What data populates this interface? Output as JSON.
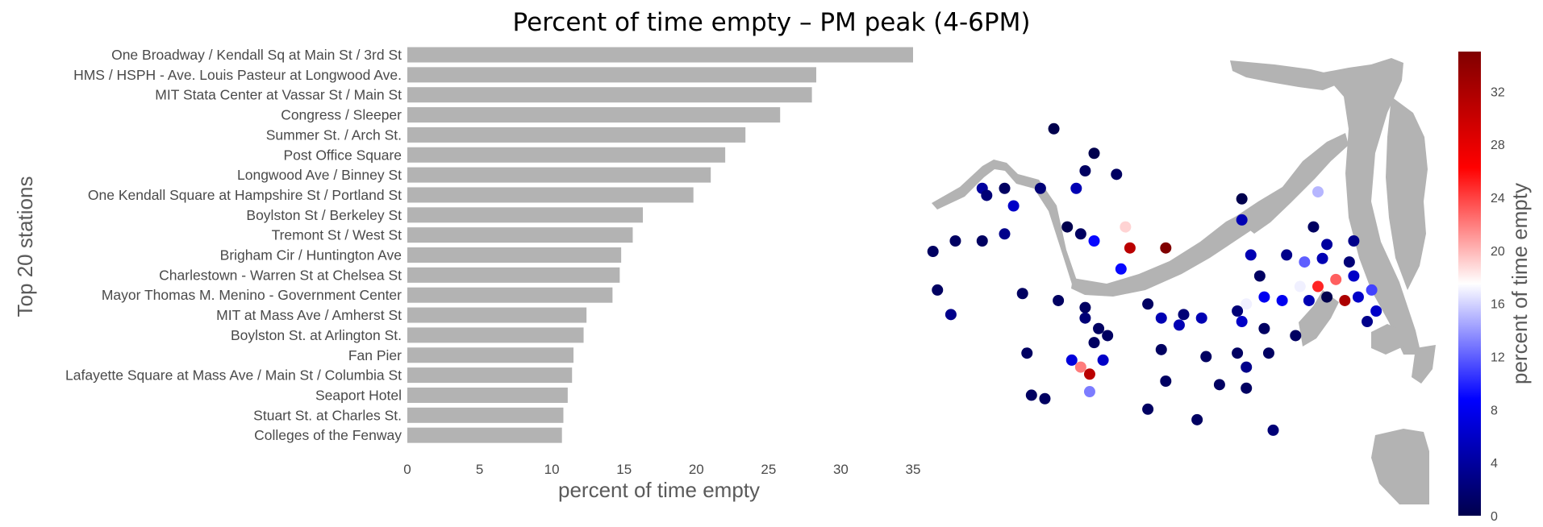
{
  "chart_data": [
    {
      "type": "bar",
      "orientation": "horizontal",
      "title": "Percent of time empty – PM peak (4-6PM)",
      "xlabel": "percent of time empty",
      "ylabel": "Top 20 stations",
      "xlim": [
        0,
        35
      ],
      "xticks": [
        "0",
        "5",
        "10",
        "15",
        "20",
        "25",
        "30",
        "35"
      ],
      "bar_color": "#b3b3b3",
      "categories": [
        "One Broadway / Kendall Sq at Main St / 3rd St",
        "HMS / HSPH - Ave. Louis Pasteur at Longwood Ave.",
        "MIT Stata Center at Vassar St / Main St",
        "Congress / Sleeper",
        "Summer St. / Arch St.",
        "Post Office Square",
        "Longwood Ave / Binney St",
        "One Kendall Square at Hampshire St / Portland St",
        "Boylston St / Berkeley St",
        "Tremont St / West St",
        "Brigham Cir / Huntington Ave",
        "Charlestown - Warren St at Chelsea St",
        "Mayor Thomas M. Menino - Government Center",
        "MIT at Mass Ave / Amherst St",
        "Boylston St. at Arlington St.",
        "Fan Pier",
        "Lafayette Square at Mass Ave / Main St / Columbia St",
        "Seaport Hotel",
        "Stuart St. at Charles St.",
        "Colleges of the Fenway"
      ],
      "values": [
        35.0,
        28.3,
        28.0,
        25.8,
        23.4,
        22.0,
        21.0,
        19.8,
        16.3,
        15.6,
        14.8,
        14.7,
        14.2,
        12.4,
        12.2,
        11.5,
        11.4,
        11.1,
        10.8,
        10.7
      ]
    },
    {
      "type": "scatter",
      "colorbar_label": "percent of time empty",
      "colorbar_range": [
        0,
        35
      ],
      "colorbar_ticks": [
        "0",
        "4",
        "8",
        "12",
        "16",
        "20",
        "24",
        "28",
        "32"
      ],
      "colormap": "seismic",
      "map_color": "#b3b3b3",
      "stations": [
        {
          "lon": 0.21,
          "lat": 0.92,
          "value": 0
        },
        {
          "lon": 0.3,
          "lat": 0.85,
          "value": 0
        },
        {
          "lon": 0.28,
          "lat": 0.8,
          "value": 1
        },
        {
          "lon": 0.35,
          "lat": 0.79,
          "value": 1
        },
        {
          "lon": 0.05,
          "lat": 0.75,
          "value": 4
        },
        {
          "lon": 0.06,
          "lat": 0.73,
          "value": 2
        },
        {
          "lon": 0.1,
          "lat": 0.75,
          "value": 1
        },
        {
          "lon": 0.18,
          "lat": 0.75,
          "value": 2
        },
        {
          "lon": 0.26,
          "lat": 0.75,
          "value": 5
        },
        {
          "lon": 0.12,
          "lat": 0.7,
          "value": 6
        },
        {
          "lon": 0.63,
          "lat": 0.72,
          "value": 0
        },
        {
          "lon": 0.8,
          "lat": 0.74,
          "value": 15
        },
        {
          "lon": 0.24,
          "lat": 0.64,
          "value": 0
        },
        {
          "lon": 0.27,
          "lat": 0.62,
          "value": 1
        },
        {
          "lon": 0.3,
          "lat": 0.6,
          "value": 9
        },
        {
          "lon": 0.37,
          "lat": 0.64,
          "value": 19
        },
        {
          "lon": 0.38,
          "lat": 0.58,
          "value": 31
        },
        {
          "lon": 0.46,
          "lat": 0.58,
          "value": 35
        },
        {
          "lon": 0.63,
          "lat": 0.66,
          "value": 5
        },
        {
          "lon": 0.79,
          "lat": 0.64,
          "value": 1
        },
        {
          "lon": 0.1,
          "lat": 0.62,
          "value": 3
        },
        {
          "lon": -0.01,
          "lat": 0.6,
          "value": 1
        },
        {
          "lon": 0.05,
          "lat": 0.6,
          "value": 1
        },
        {
          "lon": -0.06,
          "lat": 0.57,
          "value": 1
        },
        {
          "lon": 0.65,
          "lat": 0.56,
          "value": 5
        },
        {
          "lon": 0.73,
          "lat": 0.56,
          "value": 3
        },
        {
          "lon": 0.82,
          "lat": 0.59,
          "value": 4
        },
        {
          "lon": 0.88,
          "lat": 0.6,
          "value": 3
        },
        {
          "lon": 0.81,
          "lat": 0.55,
          "value": 5
        },
        {
          "lon": 0.77,
          "lat": 0.54,
          "value": 12
        },
        {
          "lon": 0.87,
          "lat": 0.54,
          "value": 2
        },
        {
          "lon": 0.36,
          "lat": 0.52,
          "value": 9
        },
        {
          "lon": 0.67,
          "lat": 0.5,
          "value": 1
        },
        {
          "lon": 0.84,
          "lat": 0.49,
          "value": 23
        },
        {
          "lon": 0.88,
          "lat": 0.5,
          "value": 6
        },
        {
          "lon": 0.8,
          "lat": 0.47,
          "value": 25
        },
        {
          "lon": 0.76,
          "lat": 0.47,
          "value": 17
        },
        {
          "lon": -0.05,
          "lat": 0.46,
          "value": 1
        },
        {
          "lon": 0.14,
          "lat": 0.45,
          "value": 1
        },
        {
          "lon": 0.22,
          "lat": 0.43,
          "value": 1
        },
        {
          "lon": 0.68,
          "lat": 0.44,
          "value": 8
        },
        {
          "lon": 0.72,
          "lat": 0.43,
          "value": 8
        },
        {
          "lon": 0.78,
          "lat": 0.43,
          "value": 5
        },
        {
          "lon": 0.82,
          "lat": 0.44,
          "value": 0
        },
        {
          "lon": 0.86,
          "lat": 0.43,
          "value": 32
        },
        {
          "lon": 0.89,
          "lat": 0.44,
          "value": 6
        },
        {
          "lon": 0.92,
          "lat": 0.46,
          "value": 11
        },
        {
          "lon": 0.64,
          "lat": 0.42,
          "value": 17
        },
        {
          "lon": -0.02,
          "lat": 0.39,
          "value": 3
        },
        {
          "lon": 0.28,
          "lat": 0.41,
          "value": 1
        },
        {
          "lon": 0.42,
          "lat": 0.42,
          "value": 1
        },
        {
          "lon": 0.5,
          "lat": 0.39,
          "value": 2
        },
        {
          "lon": 0.45,
          "lat": 0.38,
          "value": 5
        },
        {
          "lon": 0.49,
          "lat": 0.36,
          "value": 5
        },
        {
          "lon": 0.54,
          "lat": 0.38,
          "value": 5
        },
        {
          "lon": 0.62,
          "lat": 0.4,
          "value": 2
        },
        {
          "lon": 0.63,
          "lat": 0.37,
          "value": 6
        },
        {
          "lon": 0.68,
          "lat": 0.35,
          "value": 1
        },
        {
          "lon": 0.75,
          "lat": 0.33,
          "value": 1
        },
        {
          "lon": 0.91,
          "lat": 0.37,
          "value": 3
        },
        {
          "lon": 0.93,
          "lat": 0.4,
          "value": 6
        },
        {
          "lon": 0.28,
          "lat": 0.38,
          "value": 2
        },
        {
          "lon": 0.31,
          "lat": 0.35,
          "value": 1
        },
        {
          "lon": 0.33,
          "lat": 0.33,
          "value": 1
        },
        {
          "lon": 0.3,
          "lat": 0.31,
          "value": 1
        },
        {
          "lon": 0.15,
          "lat": 0.28,
          "value": 1
        },
        {
          "lon": 0.45,
          "lat": 0.29,
          "value": 1
        },
        {
          "lon": 0.55,
          "lat": 0.27,
          "value": 1
        },
        {
          "lon": 0.62,
          "lat": 0.28,
          "value": 1
        },
        {
          "lon": 0.69,
          "lat": 0.28,
          "value": 1
        },
        {
          "lon": 0.25,
          "lat": 0.26,
          "value": 7
        },
        {
          "lon": 0.27,
          "lat": 0.24,
          "value": 22
        },
        {
          "lon": 0.32,
          "lat": 0.26,
          "value": 6
        },
        {
          "lon": 0.29,
          "lat": 0.22,
          "value": 31
        },
        {
          "lon": 0.64,
          "lat": 0.24,
          "value": 3
        },
        {
          "lon": 0.46,
          "lat": 0.2,
          "value": 1
        },
        {
          "lon": 0.58,
          "lat": 0.19,
          "value": 1
        },
        {
          "lon": 0.64,
          "lat": 0.18,
          "value": 1
        },
        {
          "lon": 0.29,
          "lat": 0.17,
          "value": 13
        },
        {
          "lon": 0.16,
          "lat": 0.16,
          "value": 1
        },
        {
          "lon": 0.19,
          "lat": 0.15,
          "value": 1
        },
        {
          "lon": 0.42,
          "lat": 0.12,
          "value": 1
        },
        {
          "lon": 0.53,
          "lat": 0.09,
          "value": 1
        },
        {
          "lon": 0.7,
          "lat": 0.06,
          "value": 2
        }
      ]
    }
  ]
}
